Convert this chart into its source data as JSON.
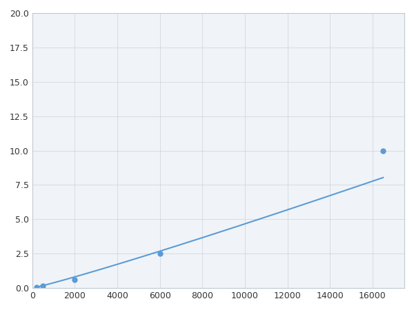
{
  "x_data": [
    200,
    500,
    2000,
    6000,
    16500
  ],
  "y_data": [
    0.08,
    0.18,
    0.6,
    2.5,
    10.0
  ],
  "line_color": "#5b9bd5",
  "marker_color": "#5b9bd5",
  "marker_size": 5,
  "marker_style": "o",
  "line_width": 1.5,
  "xlim": [
    0,
    17500
  ],
  "ylim": [
    0,
    20.0
  ],
  "xticks": [
    0,
    2000,
    4000,
    6000,
    8000,
    10000,
    12000,
    14000,
    16000
  ],
  "yticks": [
    0.0,
    2.5,
    5.0,
    7.5,
    10.0,
    12.5,
    15.0,
    17.5,
    20.0
  ],
  "grid": true,
  "background_color": "#ffffff",
  "plot_bg_color": "#f0f4f8"
}
